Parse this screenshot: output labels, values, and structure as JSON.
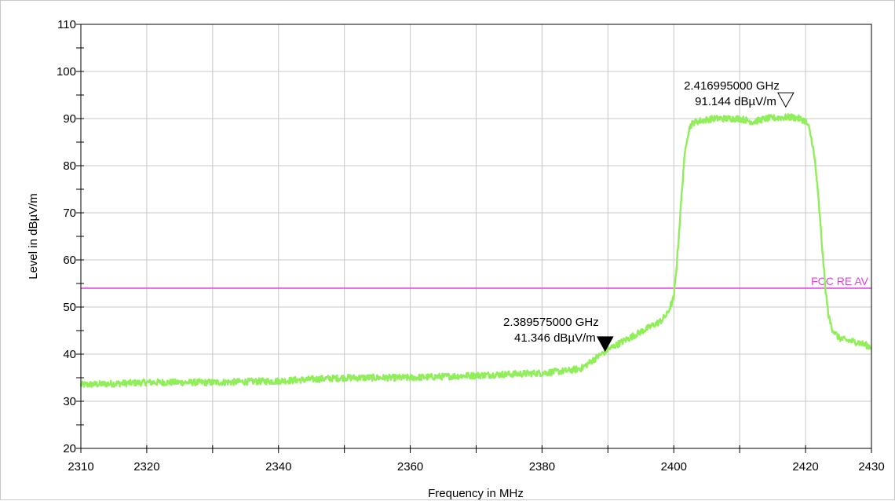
{
  "chart_data": {
    "type": "line",
    "xlabel": "Frequency in MHz",
    "ylabel": "Level in dBµV/m",
    "xlim": [
      2310,
      2430
    ],
    "ylim": [
      20,
      110
    ],
    "x_ticks": [
      "2310",
      "2320",
      "2340",
      "2360",
      "2380",
      "2400",
      "2420",
      "2430"
    ],
    "y_ticks": [
      "20",
      "30",
      "40",
      "50",
      "60",
      "70",
      "80",
      "90",
      "100",
      "110"
    ],
    "grid": true,
    "series": [
      {
        "color": "#90ee5a",
        "x": [
          2310,
          2320,
          2330,
          2340,
          2350,
          2360,
          2370,
          2380,
          2384,
          2386,
          2387,
          2388,
          2389,
          2390,
          2392,
          2394,
          2396,
          2398,
          2399,
          2400,
          2400.5,
          2401,
          2401.5,
          2402,
          2402.5,
          2403,
          2404,
          2406,
          2410,
          2412,
          2414,
          2416,
          2418,
          2419,
          2420,
          2420.5,
          2421,
          2421.5,
          2422,
          2422.5,
          2423,
          2423.5,
          2424,
          2425,
          2426,
          2428,
          2430
        ],
        "y": [
          33.5,
          34,
          34,
          34.3,
          35,
          35,
          35.5,
          36,
          36.5,
          37,
          38,
          39,
          40,
          41,
          42.5,
          44,
          45.5,
          47,
          48.5,
          52,
          60,
          70,
          80,
          86,
          88.5,
          89.2,
          89.5,
          90,
          90,
          89.3,
          90,
          90.2,
          90.3,
          90,
          89.5,
          88,
          85,
          80,
          72,
          63,
          54,
          48,
          45.5,
          43.5,
          43,
          42.5,
          41.5
        ]
      }
    ],
    "limit_lines": [
      {
        "name": "FCC RE AV",
        "y": 54,
        "color": "#e040e0"
      }
    ],
    "markers": [
      {
        "x": 2416.995,
        "y": 91.144,
        "label1": "2.416995000 GHz",
        "label2": "91.144 dBµV/m",
        "style": "hollow"
      },
      {
        "x": 2389.575,
        "y": 41.346,
        "label1": "2.389575000 GHz",
        "label2": "41.346 dBµV/m",
        "style": "filled"
      }
    ]
  }
}
